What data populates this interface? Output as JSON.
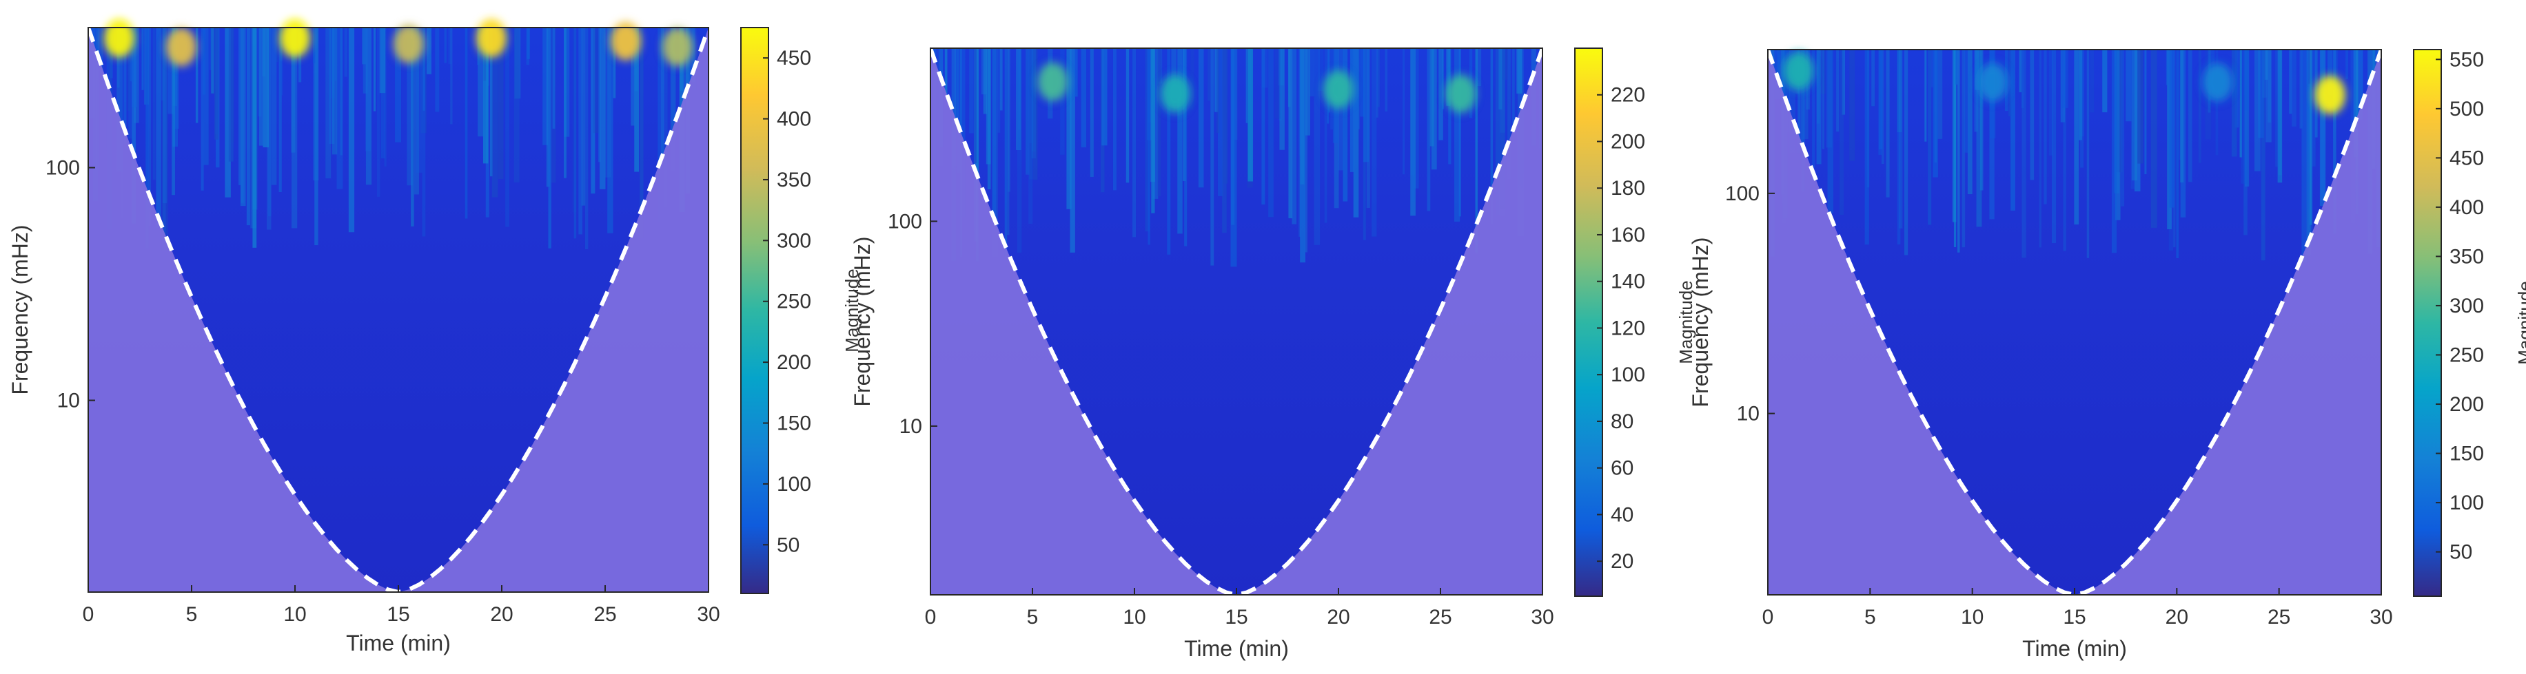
{
  "figure": {
    "panel_count": 3,
    "colormap": "parula",
    "cone_color": "#7F6FE0",
    "boundary_color": "#FFFFFF"
  },
  "chart_data": [
    {
      "type": "heatmap",
      "title": "",
      "xlabel": "Time (min)",
      "ylabel": "Frequency (mHz)",
      "xlim": [
        0,
        30
      ],
      "ylim_log_mHz": [
        1.5,
        400
      ],
      "yscale": "log",
      "x_ticks": [
        0,
        5,
        10,
        15,
        20,
        25,
        30
      ],
      "y_ticks": [
        10,
        100
      ],
      "colorbar": {
        "label": "Magnitude",
        "min": 10,
        "max": 475,
        "ticks": [
          50,
          100,
          150,
          200,
          250,
          300,
          350,
          400,
          450
        ]
      },
      "cone_of_influence_min_freq_at_center_mHz": 1.5,
      "hotspots": [
        {
          "t": 1.5,
          "f": 360,
          "mag": 470
        },
        {
          "t": 4.5,
          "f": 330,
          "mag": 380
        },
        {
          "t": 10,
          "f": 360,
          "mag": 470
        },
        {
          "t": 15.5,
          "f": 340,
          "mag": 350
        },
        {
          "t": 19.5,
          "f": 360,
          "mag": 440
        },
        {
          "t": 26,
          "f": 350,
          "mag": 400
        },
        {
          "t": 28.5,
          "f": 330,
          "mag": 330
        }
      ]
    },
    {
      "type": "heatmap",
      "title": "",
      "xlabel": "Time (min)",
      "ylabel": "Frequency (mHz)",
      "xlim": [
        0,
        30
      ],
      "ylim_log_mHz": [
        1.5,
        700
      ],
      "yscale": "log",
      "x_ticks": [
        0,
        5,
        10,
        15,
        20,
        25,
        30
      ],
      "y_ticks": [
        10,
        100
      ],
      "colorbar": {
        "label": "Magnitude",
        "min": 5,
        "max": 240,
        "ticks": [
          20,
          40,
          60,
          80,
          100,
          120,
          140,
          160,
          180,
          200,
          220
        ]
      },
      "cone_of_influence_min_freq_at_center_mHz": 1.5,
      "hotspots": [
        {
          "t": 6,
          "f": 480,
          "mag": 130
        },
        {
          "t": 12,
          "f": 420,
          "mag": 110
        },
        {
          "t": 20,
          "f": 440,
          "mag": 120
        },
        {
          "t": 26,
          "f": 420,
          "mag": 125
        }
      ]
    },
    {
      "type": "heatmap",
      "title": "",
      "xlabel": "Time (min)",
      "ylabel": "Frequency (mHz)",
      "xlim": [
        0,
        30
      ],
      "ylim_log_mHz": [
        1.5,
        450
      ],
      "yscale": "log",
      "x_ticks": [
        0,
        5,
        10,
        15,
        20,
        25,
        30
      ],
      "y_ticks": [
        10,
        100
      ],
      "colorbar": {
        "label": "Magnitude",
        "min": 5,
        "max": 560,
        "ticks": [
          50,
          100,
          150,
          200,
          250,
          300,
          350,
          400,
          450,
          500,
          550
        ]
      },
      "cone_of_influence_min_freq_at_center_mHz": 1.5,
      "hotspots": [
        {
          "t": 1.5,
          "f": 360,
          "mag": 260
        },
        {
          "t": 11,
          "f": 320,
          "mag": 150
        },
        {
          "t": 22,
          "f": 320,
          "mag": 150
        },
        {
          "t": 27.5,
          "f": 280,
          "mag": 550
        }
      ]
    }
  ]
}
